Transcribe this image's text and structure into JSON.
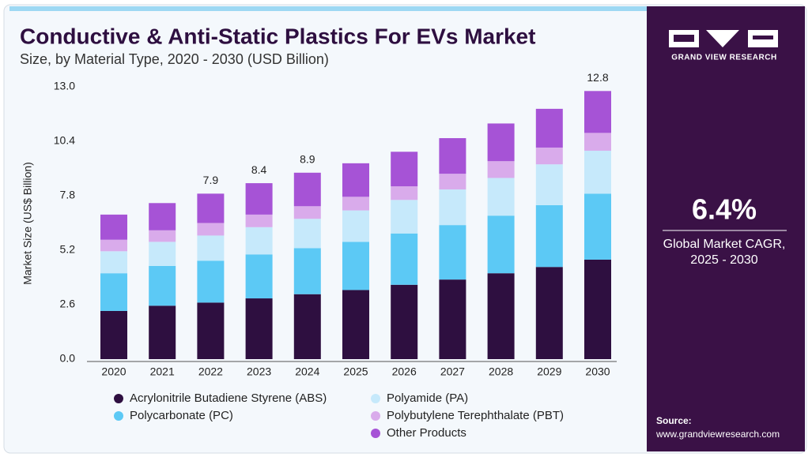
{
  "chart_data": {
    "type": "stacked_bar",
    "title": "Conductive & Anti-Static Plastics For EVs Market",
    "subtitle": "Size, by Material Type, 2020 - 2030 (USD Billion)",
    "y_label": "Market Size (US$ Billion)",
    "categories": [
      "2020",
      "2021",
      "2022",
      "2023",
      "2024",
      "2025",
      "2026",
      "2027",
      "2028",
      "2029",
      "2030"
    ],
    "series": [
      {
        "name": "Acrylonitrile Butadiene Styrene (ABS)",
        "color": "#2e0f40",
        "values": [
          2.3,
          2.55,
          2.7,
          2.9,
          3.1,
          3.3,
          3.55,
          3.8,
          4.1,
          4.4,
          4.75
        ]
      },
      {
        "name": "Polycarbonate (PC)",
        "color": "#5cc9f5",
        "values": [
          1.8,
          1.9,
          2.0,
          2.1,
          2.2,
          2.3,
          2.45,
          2.6,
          2.75,
          2.95,
          3.15
        ]
      },
      {
        "name": "Polyamide (PA)",
        "color": "#c6e9fb",
        "values": [
          1.05,
          1.15,
          1.2,
          1.3,
          1.4,
          1.5,
          1.6,
          1.7,
          1.8,
          1.95,
          2.05
        ]
      },
      {
        "name": "Polybutylene Terephthalate (PBT)",
        "color": "#d9abeb",
        "values": [
          0.55,
          0.55,
          0.6,
          0.6,
          0.6,
          0.65,
          0.65,
          0.75,
          0.8,
          0.8,
          0.85
        ]
      },
      {
        "name": "Other Products",
        "color": "#a653d6",
        "values": [
          1.2,
          1.3,
          1.4,
          1.5,
          1.6,
          1.6,
          1.65,
          1.7,
          1.8,
          1.85,
          2.0
        ]
      }
    ],
    "total_labels": [
      null,
      null,
      7.9,
      8.4,
      8.9,
      null,
      null,
      null,
      null,
      null,
      12.8
    ],
    "ylim": [
      0,
      13.0
    ],
    "yticks": [
      {
        "value": 0,
        "label": "0.0"
      },
      2.6,
      5.2,
      7.8,
      10.4,
      {
        "value": 13.0,
        "label": "13.0"
      }
    ],
    "grid": false
  },
  "sidebar": {
    "brand": "GRAND VIEW RESEARCH",
    "cagr": "6.4%",
    "cagr_caption_1": "Global Market CAGR,",
    "cagr_caption_2": "2025 - 2030",
    "source_label": "Source:",
    "source_url": "www.grandviewresearch.com"
  }
}
